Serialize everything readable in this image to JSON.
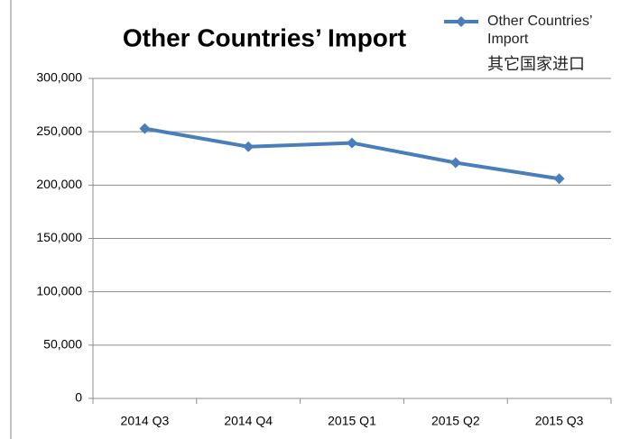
{
  "chart_data": {
    "type": "line",
    "title": "Other Countries’ Import",
    "annotation": "其它国家进口",
    "categories": [
      "2014 Q3",
      "2014 Q4",
      "2015 Q1",
      "2015 Q2",
      "2015 Q3"
    ],
    "series": [
      {
        "name": "Other Countries’ Import",
        "color": "#4a7ebb",
        "values": [
          253000,
          236000,
          239500,
          221000,
          206000
        ]
      }
    ],
    "ylim": [
      0,
      300000
    ],
    "yticks": [
      0,
      {
        "value": 50000,
        "label": "50,000"
      },
      {
        "value": 100000,
        "label": "100,000"
      },
      {
        "value": 150000,
        "label": "150,000"
      },
      {
        "value": 200000,
        "label": "200,000"
      },
      {
        "value": 250000,
        "label": "250,000"
      },
      {
        "value": 300000,
        "label": "300,000"
      }
    ],
    "grid": true,
    "legend": "top-right"
  }
}
